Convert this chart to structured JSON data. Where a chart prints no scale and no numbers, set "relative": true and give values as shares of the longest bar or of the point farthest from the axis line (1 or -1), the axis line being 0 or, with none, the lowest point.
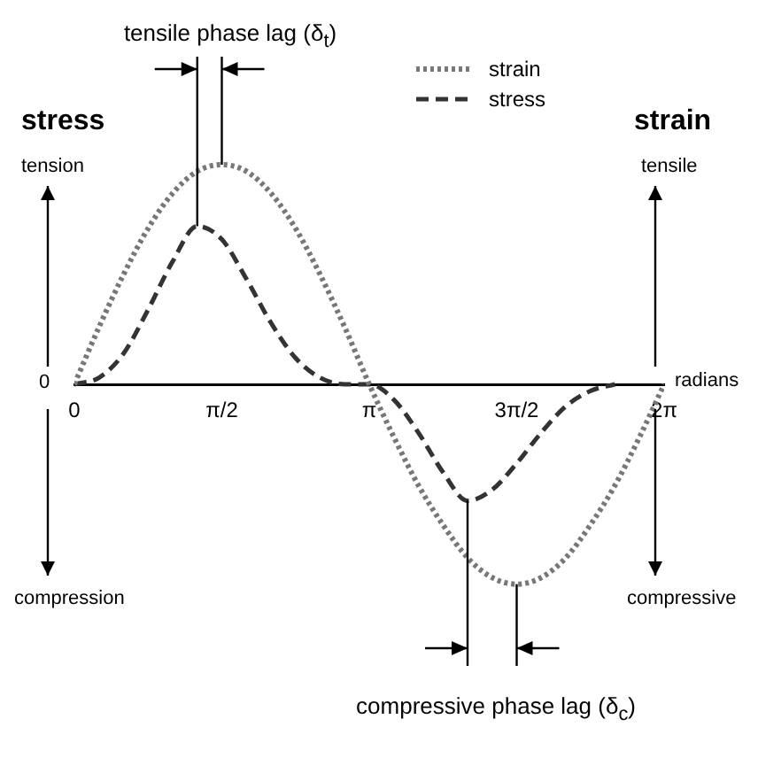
{
  "chart_data": {
    "type": "line",
    "relative": true,
    "ylabel": "stress",
    "y2label": "strain",
    "xlabel": "radians",
    "x": [
      0,
      0.2618,
      0.5236,
      0.7854,
      1.0472,
      1.309,
      1.5708,
      1.8326,
      2.0944,
      2.3562,
      2.618,
      2.8798,
      3.1416,
      3.4034,
      3.6652,
      3.927,
      4.1888,
      4.4506,
      4.7124,
      4.9742,
      5.236,
      5.4978,
      5.7596,
      6.0214,
      6.2832
    ],
    "xlim": [
      0,
      6.2832
    ],
    "xticks": [
      0,
      {
        "value": 1.5708,
        "label": "π/2"
      },
      {
        "value": 3.1416,
        "label": "π"
      },
      {
        "value": 4.7124,
        "label": "3π/2"
      },
      {
        "value": 6.2832,
        "label": "2π"
      }
    ],
    "series": [
      {
        "name": "strain",
        "color": "#777777",
        "line_style": "dotted",
        "values": [
          0,
          0.26,
          0.5,
          0.71,
          0.87,
          0.97,
          1,
          0.97,
          0.87,
          0.71,
          0.5,
          0.26,
          0,
          -0.24,
          -0.46,
          -0.64,
          -0.79,
          -0.88,
          -0.91,
          -0.88,
          -0.79,
          -0.64,
          -0.46,
          -0.24,
          0
        ]
      },
      {
        "name": "stress",
        "color": "#333333",
        "line_style": "dashed",
        "values": [
          0,
          0.03,
          0.14,
          0.34,
          0.56,
          0.72,
          0.66,
          0.48,
          0.28,
          0.12,
          0.03,
          0,
          0,
          -0.07,
          -0.22,
          -0.4,
          -0.53,
          -0.48,
          -0.36,
          -0.22,
          -0.1,
          -0.03,
          0,
          null,
          null
        ]
      }
    ],
    "legend": "top right",
    "annotations": [
      "tension",
      "compression",
      "tensile",
      "compressive",
      "0",
      "tensile phase lag (δ$_{t}$)",
      "compressive phase lag (δ$_{c}$)"
    ]
  }
}
